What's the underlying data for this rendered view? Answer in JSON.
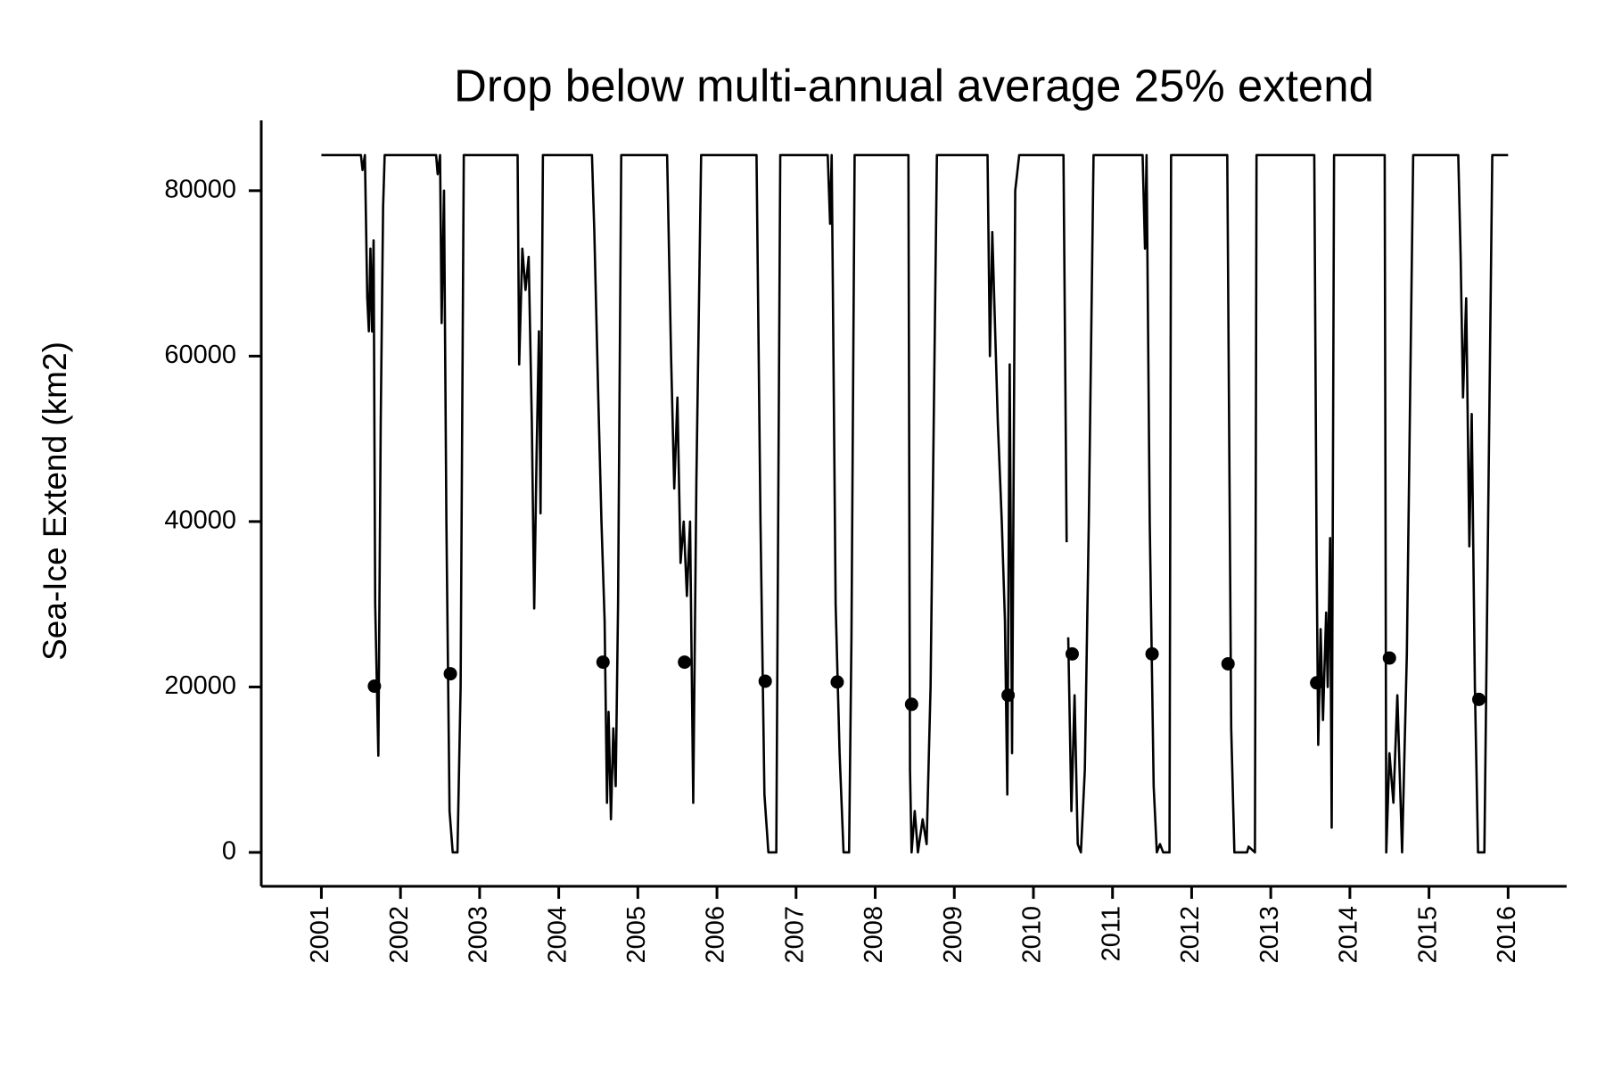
{
  "chart_data": {
    "type": "line",
    "title": "Drop below multi-annual average 25% extend",
    "ylabel": "Sea-Ice Extend (km2)",
    "color": "#000000",
    "xlim": [
      2000.24,
      2016.74
    ],
    "ylim": [
      -4100,
      88500
    ],
    "xticks": [
      2001,
      2002,
      2003,
      2004,
      2005,
      2006,
      2007,
      2008,
      2009,
      2010,
      2011,
      2012,
      2013,
      2014,
      2015,
      2016
    ],
    "yticks": [
      0,
      20000,
      40000,
      60000,
      80000
    ],
    "grid": false,
    "x": [
      2001.0,
      2001.5,
      2001.52,
      2001.55,
      2001.58,
      2001.6,
      2001.62,
      2001.64,
      2001.66,
      2001.68,
      2001.72,
      2001.75,
      2001.78,
      2001.8,
      2002.45,
      2002.47,
      2002.5,
      2002.52,
      2002.55,
      2002.58,
      2002.62,
      2002.66,
      2002.72,
      2002.76,
      2002.8,
      2003.48,
      2003.5,
      2003.54,
      2003.58,
      2003.62,
      2003.66,
      2003.69,
      2003.72,
      2003.75,
      2003.77,
      2003.8,
      2004.42,
      2004.45,
      2004.5,
      2004.54,
      2004.58,
      2004.61,
      2004.63,
      2004.66,
      2004.69,
      2004.72,
      2004.75,
      2004.79,
      2005.37,
      2005.42,
      2005.46,
      2005.5,
      2005.54,
      2005.58,
      2005.62,
      2005.66,
      2005.7,
      2005.74,
      2005.8,
      2006.5,
      2006.55,
      2006.6,
      2006.65,
      2006.75,
      2006.8,
      2007.4,
      2007.43,
      2007.45,
      2007.5,
      2007.55,
      2007.6,
      2007.67,
      2007.7,
      2007.74,
      2008.42,
      2008.44,
      2008.46,
      2008.5,
      2008.54,
      2008.6,
      2008.65,
      2008.7,
      2008.78,
      2009.42,
      2009.45,
      2009.48,
      2009.55,
      2009.6,
      2009.64,
      2009.67,
      2009.7,
      2009.73,
      2009.77,
      2009.82,
      2010.38,
      2010.42,
      2010.43,
      2010.44,
      2010.48,
      2010.52,
      2010.56,
      2010.6,
      2010.65,
      2010.7,
      2010.76,
      2011.38,
      2011.41,
      2011.43,
      2011.47,
      2011.52,
      2011.56,
      2011.6,
      2011.64,
      2011.72,
      2011.74,
      2012.45,
      2012.5,
      2012.54,
      2012.7,
      2012.72,
      2012.8,
      2012.82,
      2013.55,
      2013.58,
      2013.6,
      2013.63,
      2013.66,
      2013.7,
      2013.72,
      2013.75,
      2013.77,
      2013.8,
      2014.44,
      2014.46,
      2014.5,
      2014.55,
      2014.6,
      2014.66,
      2014.72,
      2014.8,
      2015.37,
      2015.4,
      2015.43,
      2015.47,
      2015.51,
      2015.54,
      2015.58,
      2015.62,
      2015.7,
      2015.74,
      2015.8,
      2016.0
    ],
    "values": [
      84300,
      84300,
      82500,
      84300,
      67000,
      63000,
      73000,
      63000,
      74000,
      30000,
      11700,
      52000,
      78000,
      84300,
      84300,
      82000,
      84300,
      64000,
      80000,
      40000,
      5000,
      0,
      0,
      20000,
      84300,
      84300,
      59000,
      73000,
      68000,
      72000,
      52000,
      29500,
      48000,
      63000,
      41000,
      84300,
      84300,
      75000,
      55000,
      40000,
      28000,
      6000,
      17000,
      4000,
      15000,
      8000,
      30000,
      84300,
      84300,
      60000,
      44000,
      55000,
      35000,
      40000,
      31000,
      40000,
      6000,
      45000,
      84300,
      84300,
      40000,
      7000,
      0,
      0,
      84300,
      84300,
      76000,
      84300,
      30000,
      12000,
      0,
      0,
      26000,
      84300,
      84300,
      10000,
      0,
      5000,
      0,
      4000,
      1000,
      20000,
      84300,
      84300,
      60000,
      75000,
      52000,
      40000,
      28000,
      7000,
      59000,
      12000,
      80000,
      84300,
      84300,
      37500,
      null,
      26000,
      5000,
      19000,
      1000,
      0,
      10000,
      40000,
      84300,
      84300,
      73000,
      84300,
      40000,
      8000,
      0,
      1000,
      0,
      0,
      84300,
      84300,
      15000,
      0,
      0,
      700,
      0,
      84300,
      84300,
      35000,
      13000,
      27000,
      16000,
      29000,
      20000,
      38000,
      3000,
      84300,
      84300,
      0,
      12000,
      6000,
      19000,
      0,
      24000,
      84300,
      84300,
      72000,
      55000,
      67000,
      37000,
      53000,
      20000,
      0,
      0,
      34000,
      84300,
      84300
    ],
    "markers": {
      "type": "scatter",
      "x": [
        2001.67,
        2002.63,
        2004.56,
        2005.59,
        2006.61,
        2007.52,
        2008.46,
        2009.68,
        2010.49,
        2011.5,
        2012.46,
        2013.58,
        2014.5,
        2015.63
      ],
      "values": [
        20100,
        21600,
        23000,
        23000,
        20700,
        20600,
        17900,
        19000,
        24000,
        24000,
        22800,
        20500,
        23500,
        18500
      ]
    }
  }
}
